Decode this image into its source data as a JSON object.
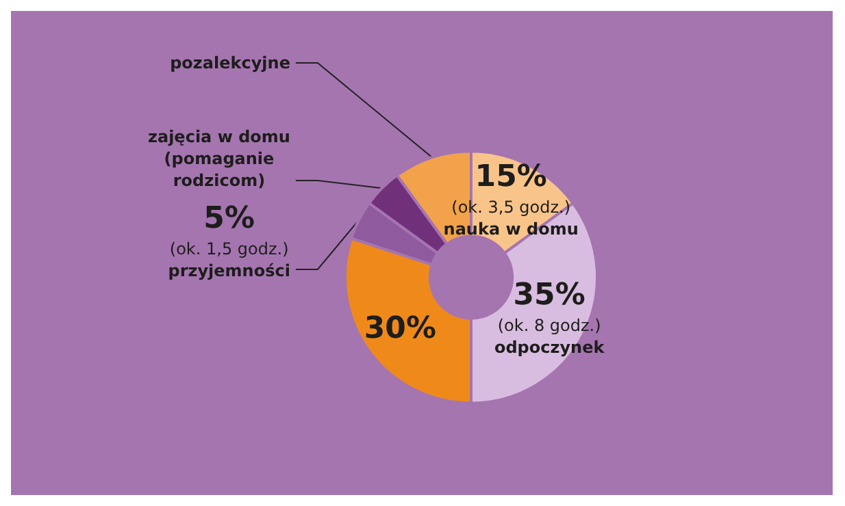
{
  "chart_data": {
    "type": "donut",
    "categories": [
      "nauka w domu",
      "odpoczynek",
      null,
      "przyjemności",
      "zajęcia w domu (pomaganie rodzicom)",
      "pozalekcyjne"
    ],
    "values": [
      15,
      35,
      30,
      5,
      5,
      10
    ],
    "value_labels": [
      "15%",
      "35%",
      "30%",
      "5%",
      null,
      null
    ],
    "colors": [
      "#f9c48a",
      "#d9bde0",
      "#ef8a1a",
      "#8f5a9e",
      "#70307a",
      "#f2a24a"
    ],
    "annotations": [
      {
        "text": "(ok. 3,5 godz.)",
        "x": "nauka w domu"
      },
      {
        "text": "(ok. 8 godz.)",
        "x": "odpoczynek"
      },
      {
        "text": "(ok. 1,5 godz.)",
        "x": "przyjemności"
      }
    ],
    "legend": false
  }
}
